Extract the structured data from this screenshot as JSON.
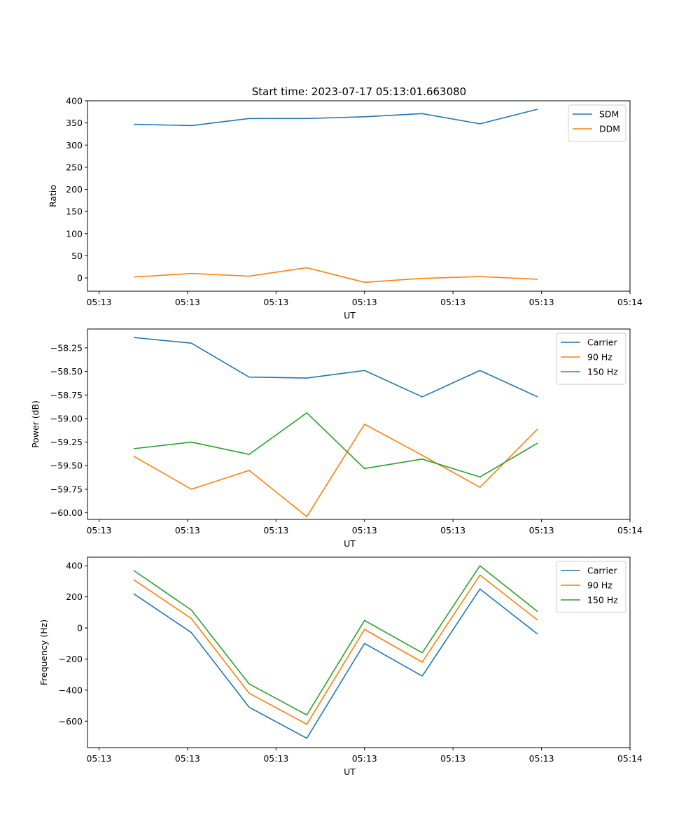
{
  "title": "Start time: 2023-07-17 05:13:01.663080",
  "chart_data": [
    {
      "type": "line",
      "title": "Start time: 2023-07-17 05:13:01.663080",
      "xlabel": "UT",
      "ylabel": "Ratio",
      "x": [
        1,
        2,
        3,
        4,
        5,
        6,
        7,
        8
      ],
      "xlim": [
        0.2,
        9.6
      ],
      "x_ticks": [
        0.4,
        1.933,
        3.467,
        5,
        6.533,
        8.067,
        9.6
      ],
      "x_tick_labels": [
        "05:13",
        "05:13",
        "05:13",
        "05:13",
        "05:13",
        "05:13",
        "05:14"
      ],
      "ylim": [
        -30,
        400
      ],
      "y_ticks": [
        0,
        50,
        100,
        150,
        200,
        250,
        300,
        350,
        400
      ],
      "y_tick_labels": [
        "0",
        "50",
        "100",
        "150",
        "200",
        "250",
        "300",
        "350",
        "400"
      ],
      "legend_position": "top-right",
      "series": [
        {
          "name": "SDM",
          "color": "#1f77b4",
          "values": [
            347,
            344,
            360,
            360,
            364,
            371,
            348,
            381
          ]
        },
        {
          "name": "DDM",
          "color": "#ff7f0e",
          "values": [
            2,
            10,
            4,
            23,
            -10,
            -1,
            3,
            -3
          ]
        }
      ]
    },
    {
      "type": "line",
      "xlabel": "UT",
      "ylabel": "Power (dB)",
      "x": [
        1,
        2,
        3,
        4,
        5,
        6,
        7,
        8
      ],
      "xlim": [
        0.2,
        9.6
      ],
      "x_ticks": [
        0.4,
        1.933,
        3.467,
        5,
        6.533,
        8.067,
        9.6
      ],
      "x_tick_labels": [
        "05:13",
        "05:13",
        "05:13",
        "05:13",
        "05:13",
        "05:13",
        "05:14"
      ],
      "ylim": [
        -60.07,
        -58.05
      ],
      "y_ticks": [
        -60.0,
        -59.75,
        -59.5,
        -59.25,
        -59.0,
        -58.75,
        -58.5,
        -58.25
      ],
      "y_tick_labels": [
        "−60.00",
        "−59.75",
        "−59.50",
        "−59.25",
        "−59.00",
        "−58.75",
        "−58.50",
        "−58.25"
      ],
      "legend_position": "top-right",
      "series": [
        {
          "name": "Carrier",
          "color": "#1f77b4",
          "values": [
            -58.14,
            -58.2,
            -58.56,
            -58.57,
            -58.49,
            -58.77,
            -58.49,
            -58.77
          ]
        },
        {
          "name": "90 Hz",
          "color": "#ff7f0e",
          "values": [
            -59.4,
            -59.75,
            -59.55,
            -60.04,
            -59.06,
            -59.39,
            -59.73,
            -59.11
          ]
        },
        {
          "name": "150 Hz",
          "color": "#2ca02c",
          "values": [
            -59.32,
            -59.25,
            -59.38,
            -58.94,
            -59.53,
            -59.43,
            -59.62,
            -59.26
          ]
        }
      ]
    },
    {
      "type": "line",
      "xlabel": "UT",
      "ylabel": "Frequency (Hz)",
      "x": [
        1,
        2,
        3,
        4,
        5,
        6,
        7,
        8
      ],
      "xlim": [
        0.2,
        9.6
      ],
      "x_ticks": [
        0.4,
        1.933,
        3.467,
        5,
        6.533,
        8.067,
        9.6
      ],
      "x_tick_labels": [
        "05:13",
        "05:13",
        "05:13",
        "05:13",
        "05:13",
        "05:13",
        "05:14"
      ],
      "ylim": [
        -770,
        455
      ],
      "y_ticks": [
        -600,
        -400,
        -200,
        0,
        200,
        400
      ],
      "y_tick_labels": [
        "−600",
        "−400",
        "−200",
        "0",
        "200",
        "400"
      ],
      "legend_position": "top-right",
      "series": [
        {
          "name": "Carrier",
          "color": "#1f77b4",
          "values": [
            220,
            -30,
            -510,
            -710,
            -100,
            -310,
            250,
            -40
          ]
        },
        {
          "name": "90 Hz",
          "color": "#ff7f0e",
          "values": [
            310,
            60,
            -420,
            -620,
            -10,
            -220,
            340,
            50
          ]
        },
        {
          "name": "150 Hz",
          "color": "#2ca02c",
          "values": [
            370,
            115,
            -360,
            -560,
            48,
            -160,
            400,
            105
          ]
        }
      ]
    }
  ]
}
